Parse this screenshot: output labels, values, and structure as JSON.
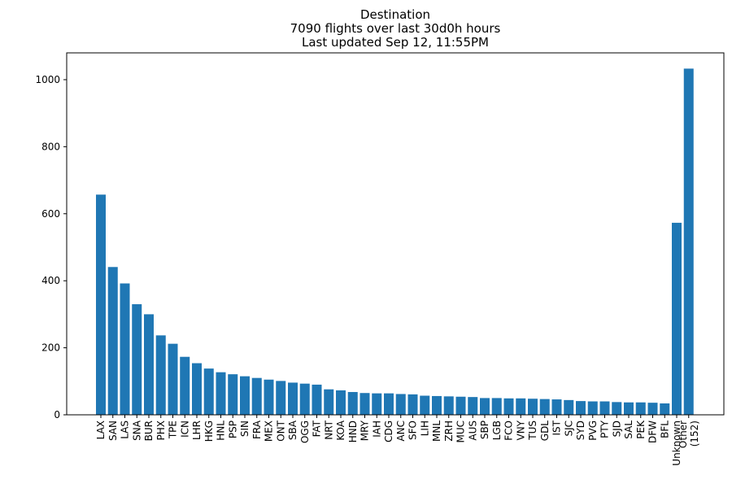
{
  "chart_data": {
    "type": "bar",
    "title": [
      "Destination",
      "7090 flights over last 30d0h hours",
      "Last updated Sep 12, 11:55PM"
    ],
    "xlabel": "",
    "ylabel": "",
    "ylim": [
      0,
      1080
    ],
    "yticks": [
      0,
      200,
      400,
      600,
      800,
      1000
    ],
    "color": "#1f77b4",
    "categories": [
      "LAX",
      "SAN",
      "LAS",
      "SNA",
      "BUR",
      "PHX",
      "TPE",
      "ICN",
      "LHR",
      "HKG",
      "HNL",
      "PSP",
      "SIN",
      "FRA",
      "MEX",
      "ONT",
      "SBA",
      "OGG",
      "FAT",
      "NRT",
      "KOA",
      "HND",
      "MRY",
      "IAH",
      "CDG",
      "ANC",
      "SFO",
      "LIH",
      "MNL",
      "ZRH",
      "MUC",
      "AUS",
      "SBP",
      "LGB",
      "FCO",
      "VNY",
      "TUS",
      "GDL",
      "IST",
      "SJC",
      "SYD",
      "PVG",
      "PTY",
      "SJD",
      "SAL",
      "PEK",
      "DFW",
      "BFL",
      "Unknown",
      "Other\n(152)"
    ],
    "values": [
      657,
      441,
      392,
      330,
      300,
      237,
      212,
      173,
      154,
      138,
      127,
      121,
      115,
      110,
      105,
      101,
      96,
      93,
      90,
      76,
      73,
      68,
      65,
      64,
      64,
      62,
      61,
      57,
      56,
      55,
      54,
      53,
      50,
      50,
      49,
      49,
      48,
      47,
      46,
      44,
      41,
      40,
      40,
      38,
      37,
      37,
      36,
      34,
      573,
      1033
    ]
  }
}
